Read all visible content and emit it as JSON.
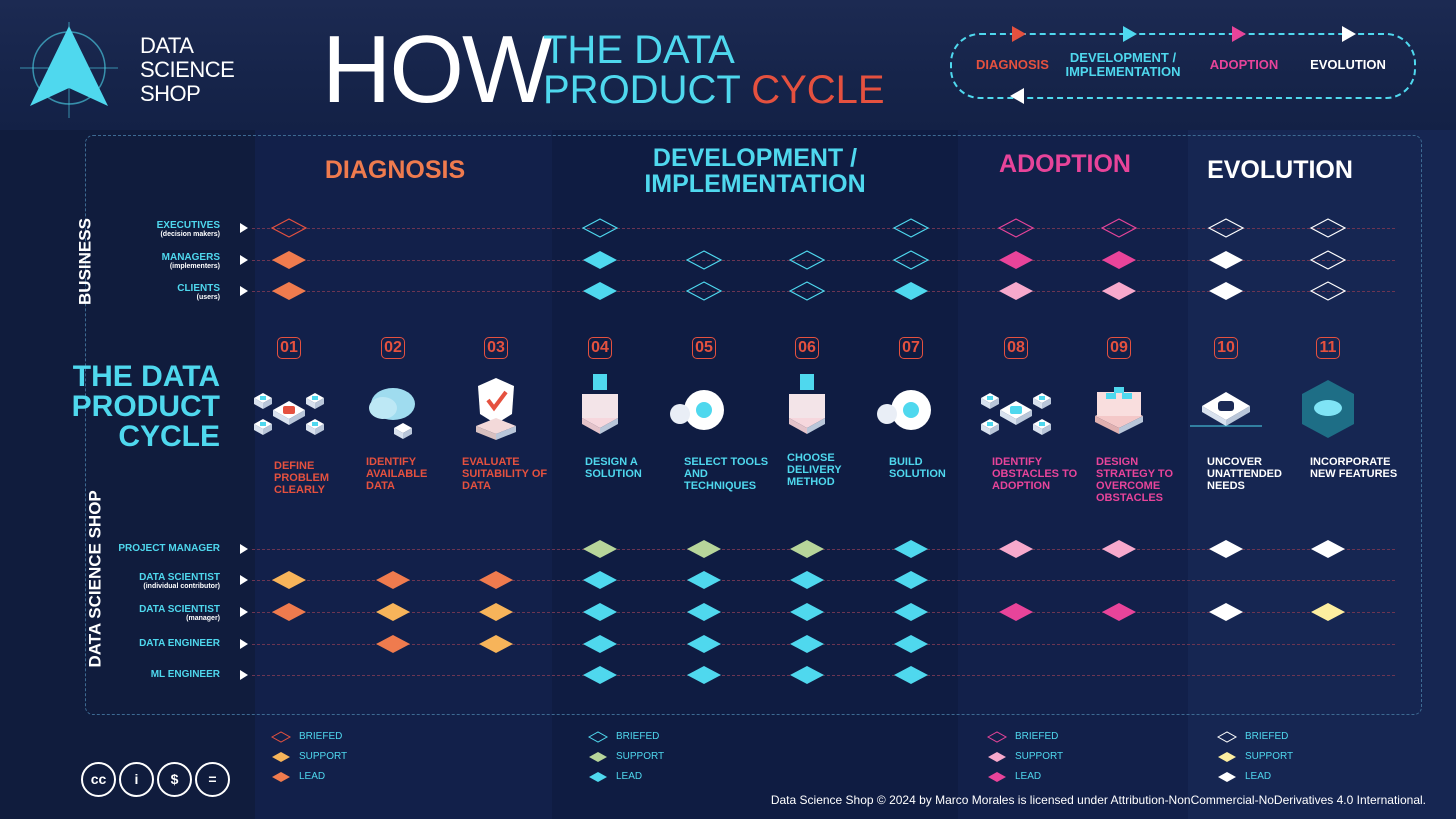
{
  "logo": {
    "line1": "DATA",
    "line2": "SCIENCE",
    "line3": "SHOP"
  },
  "title": {
    "how": "HOW",
    "sub1": "THE DATA",
    "sub2a": "PRODUCT",
    "sub2b": "CYCLE"
  },
  "cycle_legend": {
    "diagnosis": "DIAGNOSIS",
    "development": "DEVELOPMENT / IMPLEMENTATION",
    "adoption": "ADOPTION",
    "evolution": "EVOLUTION"
  },
  "phases": {
    "diagnosis": "DIAGNOSIS",
    "development": "DEVELOPMENT / IMPLEMENTATION",
    "adoption": "ADOPTION",
    "evolution": "EVOLUTION"
  },
  "side": {
    "business": "BUSINESS",
    "dss": "DATA SCIENCE SHOP"
  },
  "business_roles": [
    {
      "name": "EXECUTIVES",
      "sub": "(decision makers)"
    },
    {
      "name": "MANAGERS",
      "sub": "(implementers)"
    },
    {
      "name": "CLIENTS",
      "sub": "(users)"
    }
  ],
  "dss_roles": [
    {
      "name": "PROJECT MANAGER",
      "sub": ""
    },
    {
      "name": "DATA SCIENTIST",
      "sub": "(individual contributor)"
    },
    {
      "name": "DATA SCIENTIST",
      "sub": "(manager)"
    },
    {
      "name": "DATA ENGINEER",
      "sub": ""
    },
    {
      "name": "ML ENGINEER",
      "sub": ""
    }
  ],
  "center_title": [
    "THE DATA",
    "PRODUCT",
    "CYCLE"
  ],
  "steps": [
    {
      "num": "01",
      "label": "DEFINE PROBLEM CLEARLY",
      "color": "#e5513f"
    },
    {
      "num": "02",
      "label": "IDENTIFY AVAILABLE DATA",
      "color": "#e5513f"
    },
    {
      "num": "03",
      "label": "EVALUATE SUITABILITY OF DATA",
      "color": "#e5513f"
    },
    {
      "num": "04",
      "label": "DESIGN A SOLUTION",
      "color": "#4fd8ee"
    },
    {
      "num": "05",
      "label": "SELECT TOOLS AND TECHNIQUES",
      "color": "#4fd8ee"
    },
    {
      "num": "06",
      "label": "CHOOSE DELIVERY METHOD",
      "color": "#4fd8ee"
    },
    {
      "num": "07",
      "label": "BUILD SOLUTION",
      "color": "#4fd8ee"
    },
    {
      "num": "08",
      "label": "IDENTIFY OBSTACLES TO ADOPTION",
      "color": "#e8449a"
    },
    {
      "num": "09",
      "label": "DESIGN STRATEGY TO OVERCOME OBSTACLES",
      "color": "#e8449a"
    },
    {
      "num": "10",
      "label": "UNCOVER UNATTENDED NEEDS",
      "color": "#ffffff"
    },
    {
      "num": "11",
      "label": "INCORPORATE NEW FEATURES",
      "color": "#ffffff"
    }
  ],
  "colors": {
    "diag": {
      "support": "#f7b45a",
      "lead": "#ef7b4e",
      "briefed": "#e5513f"
    },
    "dev": {
      "support": "#b7d59a",
      "lead": "#4fd8ee",
      "briefed": "#4fd8ee"
    },
    "adop": {
      "support": "#f7a9cc",
      "lead": "#e8449a",
      "briefed": "#e8449a"
    },
    "evo": {
      "support": "#fdeea0",
      "lead": "#ffffff",
      "briefed": "#ffffff"
    }
  },
  "matrix_business": [
    [
      "B",
      "",
      "",
      "B",
      "",
      "",
      "B",
      "B",
      "B",
      "B",
      "B"
    ],
    [
      "L",
      "",
      "",
      "L",
      "B",
      "B",
      "B",
      "L",
      "L",
      "L",
      "B"
    ],
    [
      "L",
      "",
      "",
      "L",
      "B",
      "B",
      "L",
      "S",
      "S",
      "L",
      "B"
    ]
  ],
  "matrix_dss": [
    [
      "",
      "",
      "",
      "S",
      "S",
      "S",
      "L",
      "S",
      "S",
      "L",
      "L"
    ],
    [
      "S",
      "L",
      "L",
      "L",
      "L",
      "L",
      "L",
      "",
      "",
      "",
      ""
    ],
    [
      "L",
      "S",
      "S",
      "L",
      "L",
      "L",
      "L",
      "L",
      "L",
      "L",
      "S"
    ],
    [
      "",
      "L",
      "S",
      "L",
      "L",
      "L",
      "L",
      "",
      "",
      "",
      ""
    ],
    [
      "",
      "",
      "",
      "L",
      "L",
      "L",
      "L",
      "",
      "",
      "",
      ""
    ]
  ],
  "legend": {
    "briefed": "BRIEFED",
    "support": "SUPPORT",
    "lead": "LEAD"
  },
  "cc": {
    "cc": "cc",
    "by": "i",
    "nc": "$",
    "nd": "="
  },
  "footer": "Data Science Shop © 2024 by Marco Morales is licensed under Attribution-NonCommercial-NoDerivatives 4.0 International."
}
